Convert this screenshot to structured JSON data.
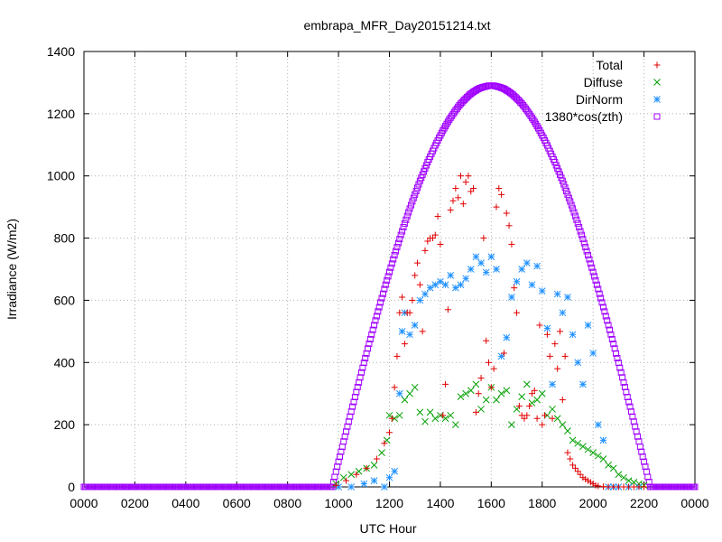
{
  "chart_data": {
    "type": "scatter",
    "title": "embrapa_MFR_Day20151214.txt",
    "xlabel": "UTC Hour",
    "ylabel": "Irradiance (W/m2)",
    "xlim": [
      0,
      24
    ],
    "ylim": [
      0,
      1400
    ],
    "x_ticks": [
      {
        "value": 0,
        "label": "0000"
      },
      {
        "value": 2,
        "label": "0200"
      },
      {
        "value": 4,
        "label": "0400"
      },
      {
        "value": 6,
        "label": "0600"
      },
      {
        "value": 8,
        "label": "0800"
      },
      {
        "value": 10,
        "label": "1000"
      },
      {
        "value": 12,
        "label": "1200"
      },
      {
        "value": 14,
        "label": "1400"
      },
      {
        "value": 16,
        "label": "1600"
      },
      {
        "value": 18,
        "label": "1800"
      },
      {
        "value": 20,
        "label": "2000"
      },
      {
        "value": 22,
        "label": "2200"
      },
      {
        "value": 24,
        "label": "0000"
      }
    ],
    "y_ticks": [
      {
        "value": 0,
        "label": "0"
      },
      {
        "value": 200,
        "label": "200"
      },
      {
        "value": 400,
        "label": "400"
      },
      {
        "value": 600,
        "label": "600"
      },
      {
        "value": 800,
        "label": "800"
      },
      {
        "value": 1000,
        "label": "1000"
      },
      {
        "value": 1200,
        "label": "1200"
      },
      {
        "value": 1400,
        "label": "1400"
      }
    ],
    "grid": true,
    "legend_position": "top-right",
    "series": [
      {
        "name": "Total",
        "marker": "plus",
        "color": "#e00000",
        "x": [
          9.9,
          10.3,
          10.7,
          11.1,
          11.5,
          11.8,
          12.0,
          12.1,
          12.2,
          12.3,
          12.4,
          12.5,
          12.6,
          12.7,
          12.8,
          12.9,
          13.0,
          13.1,
          13.2,
          13.3,
          13.4,
          13.5,
          13.6,
          13.7,
          13.8,
          13.9,
          14.0,
          14.1,
          14.2,
          14.3,
          14.4,
          14.5,
          14.6,
          14.7,
          14.8,
          14.9,
          15.0,
          15.1,
          15.2,
          15.3,
          15.4,
          15.5,
          15.6,
          15.7,
          15.8,
          15.9,
          16.0,
          16.1,
          16.2,
          16.3,
          16.4,
          16.5,
          16.6,
          16.7,
          16.8,
          16.9,
          17.0,
          17.1,
          17.2,
          17.3,
          17.4,
          17.5,
          17.6,
          17.7,
          17.8,
          17.9,
          18.0,
          18.1,
          18.2,
          18.3,
          18.4,
          18.5,
          18.6,
          18.7,
          18.8,
          18.9,
          19.0,
          19.1,
          19.2,
          19.3,
          19.4,
          19.5,
          19.6,
          19.7,
          19.8,
          19.9,
          20.0,
          20.1,
          20.2,
          20.4,
          20.6,
          20.8,
          21.0,
          21.2,
          21.4,
          21.6,
          21.8,
          22.0
        ],
        "y": [
          5,
          20,
          40,
          60,
          90,
          140,
          175,
          220,
          320,
          420,
          560,
          610,
          460,
          560,
          560,
          600,
          680,
          720,
          650,
          500,
          760,
          790,
          800,
          800,
          810,
          870,
          780,
          230,
          330,
          570,
          890,
          920,
          960,
          930,
          1000,
          910,
          980,
          1000,
          950,
          960,
          240,
          300,
          350,
          800,
          470,
          400,
          320,
          380,
          900,
          960,
          940,
          430,
          880,
          840,
          780,
          640,
          560,
          260,
          230,
          220,
          230,
          260,
          300,
          310,
          220,
          520,
          200,
          230,
          490,
          420,
          220,
          460,
          380,
          500,
          280,
          420,
          110,
          90,
          70,
          60,
          50,
          40,
          30,
          25,
          20,
          15,
          10,
          5,
          3,
          1,
          0,
          0,
          0,
          0,
          0,
          0,
          0,
          0
        ]
      },
      {
        "name": "Diffuse",
        "marker": "cross",
        "color": "#00a000",
        "x": [
          9.9,
          10.2,
          10.5,
          10.8,
          11.1,
          11.4,
          11.7,
          11.9,
          12.0,
          12.2,
          12.4,
          12.6,
          12.8,
          13.0,
          13.2,
          13.4,
          13.6,
          13.8,
          14.0,
          14.2,
          14.4,
          14.6,
          14.8,
          15.0,
          15.2,
          15.4,
          15.6,
          15.8,
          16.0,
          16.2,
          16.4,
          16.6,
          16.8,
          17.0,
          17.2,
          17.4,
          17.6,
          17.8,
          18.0,
          18.2,
          18.4,
          18.6,
          18.8,
          19.0,
          19.2,
          19.4,
          19.6,
          19.8,
          20.0,
          20.2,
          20.4,
          20.6,
          20.8,
          21.0,
          21.2,
          21.4,
          21.6,
          21.8,
          22.0
        ],
        "y": [
          10,
          30,
          40,
          50,
          60,
          70,
          110,
          150,
          230,
          220,
          230,
          280,
          300,
          320,
          240,
          210,
          240,
          220,
          230,
          220,
          230,
          200,
          290,
          300,
          310,
          330,
          250,
          280,
          320,
          280,
          300,
          310,
          200,
          250,
          290,
          330,
          270,
          280,
          300,
          230,
          250,
          220,
          200,
          180,
          150,
          140,
          130,
          120,
          110,
          100,
          90,
          70,
          60,
          40,
          30,
          20,
          15,
          10,
          5
        ]
      },
      {
        "name": "DirNorm",
        "marker": "star",
        "color": "#1e90ff",
        "x": [
          10.0,
          10.5,
          11.0,
          11.4,
          11.8,
          12.0,
          12.2,
          12.4,
          12.5,
          12.6,
          12.8,
          13.0,
          13.2,
          13.4,
          13.6,
          13.8,
          14.0,
          14.2,
          14.4,
          14.6,
          14.8,
          15.0,
          15.2,
          15.4,
          15.6,
          15.8,
          16.0,
          16.2,
          16.4,
          16.6,
          16.8,
          17.0,
          17.2,
          17.4,
          17.6,
          17.8,
          18.0,
          18.2,
          18.4,
          18.6,
          18.8,
          19.0,
          19.2,
          19.4,
          19.6,
          19.8,
          20.0,
          20.2,
          20.4,
          20.6,
          20.8,
          21.0,
          21.4,
          21.8
        ],
        "y": [
          0,
          0,
          10,
          20,
          0,
          30,
          50,
          300,
          500,
          560,
          490,
          520,
          600,
          620,
          640,
          650,
          660,
          650,
          680,
          640,
          650,
          670,
          700,
          740,
          720,
          690,
          740,
          700,
          420,
          480,
          610,
          660,
          700,
          720,
          650,
          710,
          630,
          510,
          330,
          620,
          560,
          610,
          490,
          400,
          330,
          520,
          430,
          200,
          150,
          0,
          0,
          0,
          0,
          0
        ]
      },
      {
        "name": "1380*cos(zth)",
        "marker": "square",
        "color": "#a000ff",
        "x": [],
        "y": []
      }
    ]
  }
}
